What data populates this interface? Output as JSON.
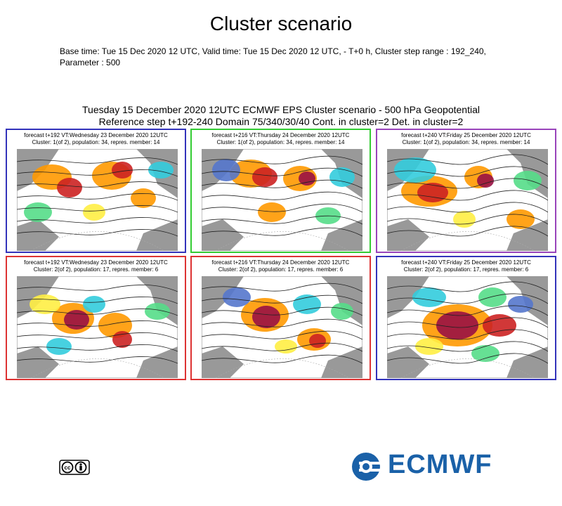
{
  "page": {
    "title": "Cluster scenario",
    "info_line1": "Base time: Tue 15 Dec 2020 12 UTC, Valid time: Tue 15 Dec 2020 12 UTC, - T+0 h, Cluster step range : 192_240,",
    "info_line2": "Parameter : 500"
  },
  "figure": {
    "title_line1": "Tuesday 15 December 2020 12UTC ECMWF EPS Cluster scenario - 500 hPa Geopotential",
    "title_line2": "Reference step t+192-240 Domain 75/340/30/40 Cont. in cluster=2 Det. in cluster=2"
  },
  "colors": {
    "panel1_border": "#3333bb",
    "panel2_border": "#33cc33",
    "panel3_border": "#9944bb",
    "panel4_border": "#dd3333",
    "panel5_border": "#dd3333",
    "panel6_border": "#3333bb",
    "brand": "#1a61a8"
  },
  "chart_data": {
    "type": "heatmap",
    "panels": [
      {
        "line1": "forecast t+192 VT:Wednesday 23 December 2020 12UTC",
        "line2": "Cluster: 1(of 2), population: 34, repres. member: 14"
      },
      {
        "line1": "forecast t+216 VT:Thursday 24 December 2020 12UTC",
        "line2": "Cluster: 1(of 2), population: 34, repres. member: 14"
      },
      {
        "line1": "forecast t+240 VT:Friday 25 December 2020 12UTC",
        "line2": "Cluster: 1(of 2), population: 34, repres. member: 14"
      },
      {
        "line1": "forecast t+192 VT:Wednesday 23 December 2020 12UTC",
        "line2": "Cluster: 2(of 2), population: 17, repres. member: 6"
      },
      {
        "line1": "forecast t+216 VT:Thursday 24 December 2020 12UTC",
        "line2": "Cluster: 2(of 2), population: 17, repres. member: 6"
      },
      {
        "line1": "forecast t+240 VT:Friday 25 December 2020 12UTC",
        "line2": "Cluster: 2(of 2), population: 17, repres. member: 6"
      }
    ]
  },
  "footer": {
    "logo_text": "ECMWF"
  }
}
